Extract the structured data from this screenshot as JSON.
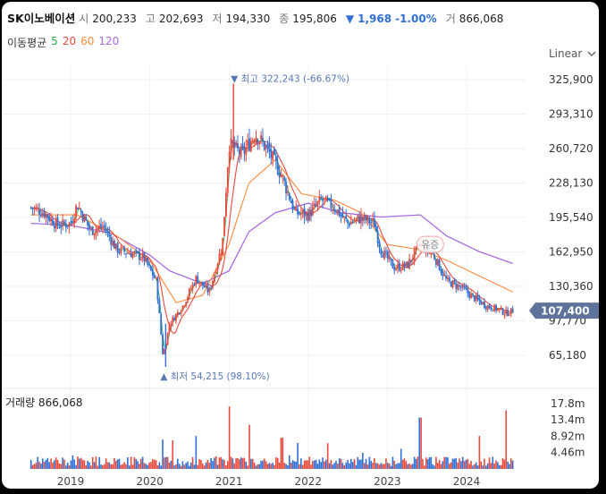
{
  "header": {
    "name": "SK이노베이션",
    "open_label": "시",
    "open": "200,233",
    "high_label": "고",
    "high": "202,693",
    "low_label": "저",
    "low": "194,330",
    "close_label": "종",
    "close": "195,806",
    "change_arrow": "▼",
    "change": "1,968",
    "change_pct": "-1.00%",
    "volume_label": "거",
    "volume": "866,068"
  },
  "ma_legend": {
    "title": "이동평균",
    "periods": [
      "5",
      "20",
      "60",
      "120"
    ],
    "colors": [
      "#2eaa3e",
      "#e84a3c",
      "#ff8a3c",
      "#a86be0"
    ]
  },
  "scale_selector": {
    "value": "Linear",
    "icon": "chevron-down-icon"
  },
  "volume_panel": {
    "label": "거래량 866,068"
  },
  "colors": {
    "up": "#e84a3c",
    "down": "#2f6fd6",
    "price_tag": "#5e7399",
    "accent_note": "#5a78b5"
  },
  "chart_data": [
    {
      "type": "candlestick",
      "y_ticks": [
        "325,900",
        "293,310",
        "260,720",
        "228,130",
        "195,540",
        "162,950",
        "130,360",
        "97,770",
        "65,180"
      ],
      "x_ticks": [
        "2019",
        "2020",
        "2021",
        "2022",
        "2023",
        "2024"
      ],
      "ylim": [
        40000,
        340000
      ],
      "current_price": "107,400",
      "current_value": 107400,
      "annotations": {
        "high": {
          "text": "▼ 최고 322,243 (-66.67%)",
          "date": "2021-01",
          "value": 322243
        },
        "low": {
          "text": "▲ 최저 54,215 (98.10%)",
          "date": "2020-03",
          "value": 54215
        },
        "event": {
          "text": "유증",
          "date": "2023-06"
        }
      },
      "close_series": [
        [
          "2018-07",
          205000
        ],
        [
          "2018-09",
          200000
        ],
        [
          "2018-11",
          188000
        ],
        [
          "2019-01",
          190000
        ],
        [
          "2019-02",
          208000
        ],
        [
          "2019-04",
          183000
        ],
        [
          "2019-06",
          187000
        ],
        [
          "2019-08",
          165000
        ],
        [
          "2019-10",
          162000
        ],
        [
          "2019-12",
          158000
        ],
        [
          "2020-02",
          135000
        ],
        [
          "2020-03",
          64000
        ],
        [
          "2020-04",
          95000
        ],
        [
          "2020-06",
          112000
        ],
        [
          "2020-08",
          138000
        ],
        [
          "2020-10",
          125000
        ],
        [
          "2020-12",
          170000
        ],
        [
          "2021-01",
          265000
        ],
        [
          "2021-03",
          255000
        ],
        [
          "2021-05",
          275000
        ],
        [
          "2021-07",
          258000
        ],
        [
          "2021-09",
          235000
        ],
        [
          "2021-11",
          200000
        ],
        [
          "2022-01",
          198000
        ],
        [
          "2022-03",
          212000
        ],
        [
          "2022-05",
          205000
        ],
        [
          "2022-07",
          190000
        ],
        [
          "2022-09",
          195000
        ],
        [
          "2022-11",
          190000
        ],
        [
          "2022-12",
          165000
        ],
        [
          "2023-02",
          148000
        ],
        [
          "2023-04",
          150000
        ],
        [
          "2023-06",
          170000
        ],
        [
          "2023-08",
          160000
        ],
        [
          "2023-10",
          135000
        ],
        [
          "2023-12",
          130000
        ],
        [
          "2024-02",
          120000
        ],
        [
          "2024-04",
          112000
        ],
        [
          "2024-06",
          108000
        ],
        [
          "2024-07",
          105000
        ],
        [
          "2024-08",
          107400
        ]
      ],
      "ma120_series": [
        [
          "2018-07",
          190000
        ],
        [
          "2019-01",
          188000
        ],
        [
          "2019-07",
          181000
        ],
        [
          "2020-01",
          160000
        ],
        [
          "2020-04",
          145000
        ],
        [
          "2020-09",
          133000
        ],
        [
          "2021-01",
          145000
        ],
        [
          "2021-04",
          182000
        ],
        [
          "2021-08",
          200000
        ],
        [
          "2022-01",
          209000
        ],
        [
          "2022-06",
          200000
        ],
        [
          "2022-12",
          196000
        ],
        [
          "2023-06",
          198000
        ],
        [
          "2023-10",
          178000
        ],
        [
          "2024-03",
          163000
        ],
        [
          "2024-08",
          152000
        ]
      ],
      "ma60_series": [
        [
          "2018-07",
          198000
        ],
        [
          "2019-02",
          198000
        ],
        [
          "2019-08",
          178000
        ],
        [
          "2020-01",
          155000
        ],
        [
          "2020-05",
          115000
        ],
        [
          "2020-09",
          122000
        ],
        [
          "2021-01",
          170000
        ],
        [
          "2021-04",
          228000
        ],
        [
          "2021-08",
          250000
        ],
        [
          "2021-12",
          218000
        ],
        [
          "2022-05",
          212000
        ],
        [
          "2022-09",
          200000
        ],
        [
          "2023-01",
          170000
        ],
        [
          "2023-06",
          165000
        ],
        [
          "2023-10",
          155000
        ],
        [
          "2024-03",
          140000
        ],
        [
          "2024-08",
          125000
        ]
      ],
      "volume_ticks": [
        "17.8m",
        "13.4m",
        "8.92m",
        "4.46m"
      ],
      "volume_max": 20000000,
      "volume_spikes": [
        [
          "2020-03",
          8000000
        ],
        [
          "2020-08",
          9000000
        ],
        [
          "2021-01",
          17000000
        ],
        [
          "2021-04",
          12000000
        ],
        [
          "2021-09",
          8500000
        ],
        [
          "2022-04",
          7000000
        ],
        [
          "2023-06",
          14000000
        ],
        [
          "2024-03",
          9000000
        ],
        [
          "2024-07",
          16000000
        ]
      ]
    }
  ]
}
